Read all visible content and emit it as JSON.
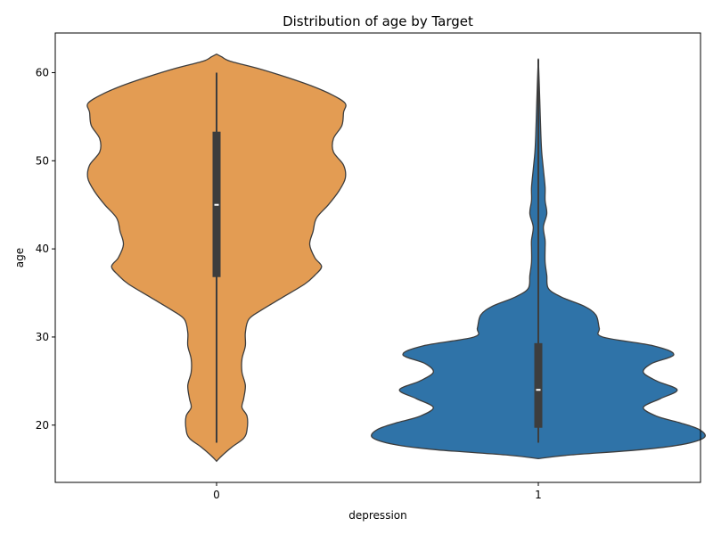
{
  "chart_data": {
    "type": "violin",
    "title": "Distribution of age by Target",
    "xlabel": "depression",
    "ylabel": "age",
    "ylim": [
      13.5,
      64.5
    ],
    "y_ticks": [
      20,
      30,
      40,
      50,
      60
    ],
    "grid": false,
    "categories": [
      "0",
      "1"
    ],
    "series": [
      {
        "name": "0",
        "color": "#e39c53",
        "min": 18,
        "q1": 36.8,
        "median": 45,
        "q3": 53.3,
        "max": 60,
        "density_profile": [
          [
            15.9,
            0.0
          ],
          [
            16.5,
            0.03
          ],
          [
            17.5,
            0.09
          ],
          [
            18.5,
            0.16
          ],
          [
            19.5,
            0.18
          ],
          [
            21,
            0.18
          ],
          [
            22,
            0.15
          ],
          [
            23,
            0.16
          ],
          [
            24.5,
            0.17
          ],
          [
            26,
            0.15
          ],
          [
            27.5,
            0.15
          ],
          [
            29,
            0.17
          ],
          [
            30.5,
            0.17
          ],
          [
            32,
            0.19
          ],
          [
            33,
            0.26
          ],
          [
            34.5,
            0.39
          ],
          [
            36,
            0.52
          ],
          [
            37,
            0.58
          ],
          [
            38,
            0.62
          ],
          [
            39,
            0.58
          ],
          [
            40.5,
            0.55
          ],
          [
            42,
            0.57
          ],
          [
            43.5,
            0.59
          ],
          [
            45,
            0.66
          ],
          [
            46.5,
            0.72
          ],
          [
            48,
            0.76
          ],
          [
            49.5,
            0.75
          ],
          [
            51,
            0.69
          ],
          [
            52.5,
            0.69
          ],
          [
            54,
            0.74
          ],
          [
            55.5,
            0.75
          ],
          [
            56.5,
            0.76
          ],
          [
            57.5,
            0.68
          ],
          [
            58.5,
            0.56
          ],
          [
            59.5,
            0.41
          ],
          [
            60.5,
            0.24
          ],
          [
            61.3,
            0.08
          ],
          [
            61.8,
            0.03
          ],
          [
            62.1,
            0.0
          ]
        ]
      },
      {
        "name": "1",
        "color": "#2f73a8",
        "min": 18,
        "q1": 19.7,
        "median": 24,
        "q3": 29.3,
        "max": 61.5,
        "density_profile": [
          [
            16.2,
            0.0
          ],
          [
            16.6,
            0.18
          ],
          [
            17.2,
            0.6
          ],
          [
            17.8,
            0.85
          ],
          [
            18.6,
            0.98
          ],
          [
            19.5,
            0.95
          ],
          [
            20.3,
            0.83
          ],
          [
            21,
            0.7
          ],
          [
            22,
            0.62
          ],
          [
            23,
            0.72
          ],
          [
            24,
            0.82
          ],
          [
            25,
            0.7
          ],
          [
            26,
            0.62
          ],
          [
            27,
            0.67
          ],
          [
            28,
            0.8
          ],
          [
            29,
            0.68
          ],
          [
            30,
            0.38
          ],
          [
            31,
            0.36
          ],
          [
            32.5,
            0.34
          ],
          [
            33.5,
            0.27
          ],
          [
            34.5,
            0.14
          ],
          [
            35.5,
            0.06
          ],
          [
            37,
            0.05
          ],
          [
            38.5,
            0.04
          ],
          [
            40,
            0.04
          ],
          [
            41,
            0.04
          ],
          [
            42.5,
            0.03
          ],
          [
            44,
            0.05
          ],
          [
            45.5,
            0.04
          ],
          [
            47,
            0.04
          ],
          [
            49,
            0.03
          ],
          [
            51,
            0.02
          ],
          [
            53,
            0.015
          ],
          [
            56,
            0.01
          ],
          [
            59,
            0.005
          ],
          [
            61.6,
            0.0
          ]
        ]
      }
    ]
  }
}
